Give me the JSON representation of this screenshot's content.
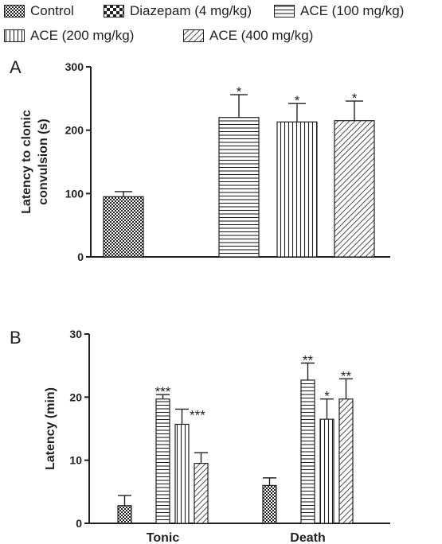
{
  "legend": [
    {
      "name": "Control",
      "pattern": "checker-fine"
    },
    {
      "name": "Diazepam (4 mg/kg)",
      "pattern": "checker-coarse"
    },
    {
      "name": "ACE (100 mg/kg)",
      "pattern": "horizontal-lines"
    },
    {
      "name": "ACE (200 mg/kg)",
      "pattern": "vertical-lines"
    },
    {
      "name": "ACE (400 mg/kg)",
      "pattern": "diagonal-lines"
    }
  ],
  "colors": {
    "ink": "#231f20",
    "background": "#ffffff"
  },
  "chart_data": [
    {
      "type": "bar",
      "panel_label": "A",
      "ylabel": "Latency to clonic\nconvulsion (s)",
      "xlabel": "",
      "ylim": [
        0,
        300
      ],
      "yticks": [
        0,
        100,
        200,
        300
      ],
      "grid": false,
      "categories": [
        ""
      ],
      "series": [
        {
          "name": "Control",
          "values": [
            95
          ],
          "errors": [
            8
          ],
          "sig": [
            ""
          ]
        },
        {
          "name": "Diazepam (4 mg/kg)",
          "values": [
            null
          ],
          "errors": [
            null
          ],
          "sig": [
            ""
          ]
        },
        {
          "name": "ACE (100 mg/kg)",
          "values": [
            220
          ],
          "errors": [
            36
          ],
          "sig": [
            "*"
          ]
        },
        {
          "name": "ACE (200 mg/kg)",
          "values": [
            213
          ],
          "errors": [
            29
          ],
          "sig": [
            "*"
          ]
        },
        {
          "name": "ACE (400 mg/kg)",
          "values": [
            215
          ],
          "errors": [
            31
          ],
          "sig": [
            "*"
          ]
        }
      ]
    },
    {
      "type": "bar",
      "panel_label": "B",
      "ylabel": "Latency (min)",
      "xlabel": "",
      "ylim": [
        0,
        30
      ],
      "yticks": [
        0,
        10,
        20,
        30
      ],
      "grid": false,
      "categories": [
        "Tonic",
        "Death"
      ],
      "series": [
        {
          "name": "Control",
          "values": [
            2.8,
            6.0
          ],
          "errors": [
            1.6,
            1.2
          ],
          "sig": [
            "",
            ""
          ]
        },
        {
          "name": "Diazepam (4 mg/kg)",
          "values": [
            null,
            null
          ],
          "errors": [
            null,
            null
          ],
          "sig": [
            "",
            ""
          ]
        },
        {
          "name": "ACE (100 mg/kg)",
          "values": [
            19.7,
            22.7
          ],
          "errors": [
            0.7,
            2.7
          ],
          "sig": [
            "***",
            "**"
          ]
        },
        {
          "name": "ACE (200 mg/kg)",
          "values": [
            15.7,
            16.5
          ],
          "errors": [
            2.4,
            3.2
          ],
          "sig": [
            "***",
            "*"
          ]
        },
        {
          "name": "ACE (400 mg/kg)",
          "values": [
            9.5,
            19.7
          ],
          "errors": [
            1.7,
            3.2
          ],
          "sig": [
            "",
            "**"
          ]
        }
      ]
    }
  ]
}
